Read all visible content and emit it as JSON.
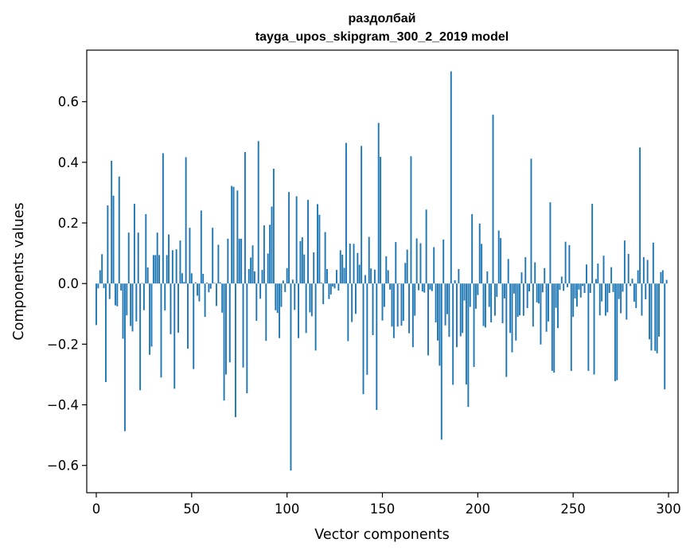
{
  "chart_data": {
    "type": "bar",
    "title": "раздолбай",
    "subtitle": "tayga_upos_skipgram_300_2_2019 model",
    "xlabel": "Vector components",
    "ylabel": "Components values",
    "xlim": [
      -5,
      305
    ],
    "ylim": [
      -0.69,
      0.77
    ],
    "xticks": [
      0,
      50,
      100,
      150,
      200,
      250,
      300
    ],
    "yticks": [
      -0.6,
      -0.4,
      -0.2,
      0.0,
      0.2,
      0.4,
      0.6
    ],
    "ytick_labels": [
      "−0.6",
      "−0.4",
      "−0.2",
      "0.0",
      "0.2",
      "0.4",
      "0.6"
    ],
    "bar_color": "#1f77b4",
    "x": "0..299 (component index)",
    "values": [
      -0.137,
      -0.016,
      0.044,
      0.097,
      -0.015,
      -0.325,
      0.258,
      -0.051,
      0.405,
      0.29,
      -0.072,
      -0.075,
      0.353,
      -0.023,
      -0.182,
      -0.487,
      -0.105,
      0.168,
      -0.14,
      -0.158,
      0.263,
      -0.125,
      0.168,
      -0.352,
      0.002,
      -0.088,
      0.229,
      0.053,
      -0.235,
      -0.208,
      0.094,
      0.094,
      0.168,
      0.094,
      -0.31,
      0.43,
      -0.089,
      0.094,
      0.162,
      -0.167,
      0.11,
      -0.347,
      0.113,
      -0.162,
      0.142,
      0.034,
      0.005,
      0.417,
      -0.215,
      0.184,
      0.034,
      -0.282,
      0.004,
      -0.04,
      -0.059,
      0.241,
      0.032,
      -0.11,
      0.003,
      -0.029,
      -0.017,
      0.184,
      0.002,
      -0.074,
      0.128,
      0.004,
      -0.096,
      -0.386,
      -0.3,
      0.148,
      -0.26,
      0.322,
      0.319,
      -0.441,
      0.307,
      0.148,
      0.148,
      -0.277,
      0.434,
      -0.362,
      0.048,
      0.086,
      0.126,
      0.04,
      -0.123,
      0.47,
      -0.05,
      0.045,
      0.192,
      -0.189,
      0.099,
      0.194,
      0.254,
      0.379,
      -0.088,
      -0.097,
      -0.18,
      -0.077,
      0.01,
      -0.028,
      0.051,
      0.302,
      -0.617,
      0.013,
      -0.087,
      0.288,
      -0.18,
      0.14,
      0.153,
      0.096,
      -0.163,
      0.276,
      -0.095,
      -0.108,
      0.103,
      -0.221,
      0.262,
      0.227,
      0.003,
      -0.068,
      0.17,
      0.048,
      -0.051,
      -0.036,
      -0.01,
      -0.016,
      0.045,
      -0.023,
      0.11,
      0.095,
      0.052,
      0.464,
      -0.19,
      0.132,
      -0.127,
      0.131,
      -0.1,
      0.101,
      0.062,
      0.454,
      -0.365,
      0.028,
      -0.301,
      0.154,
      0.05,
      -0.17,
      0.046,
      -0.417,
      0.53,
      0.418,
      -0.122,
      -0.077,
      0.09,
      0.044,
      -0.02,
      -0.142,
      -0.18,
      0.137,
      -0.142,
      0.001,
      -0.139,
      -0.123,
      0.068,
      0.112,
      -0.164,
      0.42,
      -0.21,
      -0.106,
      0.149,
      -0.022,
      0.133,
      -0.026,
      -0.03,
      0.244,
      -0.237,
      -0.02,
      -0.025,
      0.12,
      -0.128,
      -0.188,
      -0.271,
      -0.515,
      0.145,
      -0.138,
      -0.101,
      -0.176,
      0.7,
      -0.334,
      0.011,
      -0.21,
      0.048,
      -0.174,
      -0.163,
      -0.056,
      -0.333,
      -0.407,
      -0.077,
      0.229,
      -0.275,
      -0.083,
      -0.038,
      0.198,
      0.131,
      -0.14,
      -0.145,
      0.04,
      -0.077,
      -0.128,
      0.557,
      -0.106,
      -0.044,
      0.175,
      0.15,
      -0.131,
      -0.049,
      -0.308,
      0.081,
      -0.163,
      -0.227,
      -0.033,
      -0.188,
      -0.11,
      -0.105,
      0.037,
      -0.106,
      0.087,
      -0.081,
      -0.026,
      0.412,
      -0.142,
      0.07,
      -0.062,
      -0.066,
      -0.201,
      -0.029,
      0.051,
      -0.159,
      -0.125,
      0.268,
      -0.288,
      -0.294,
      -0.08,
      -0.147,
      -0.021,
      0.023,
      -0.024,
      0.138,
      -0.012,
      0.127,
      -0.288,
      -0.11,
      -0.049,
      -0.076,
      -0.02,
      -0.046,
      -0.008,
      -0.031,
      0.063,
      -0.288,
      -0.031,
      0.263,
      -0.3,
      0.015,
      0.066,
      -0.105,
      -0.059,
      0.092,
      -0.106,
      -0.095,
      -0.031,
      0.054,
      -0.028,
      -0.322,
      -0.319,
      -0.051,
      -0.098,
      -0.027,
      0.142,
      -0.119,
      0.098,
      -0.008,
      0.016,
      -0.06,
      -0.081,
      0.044,
      0.449,
      -0.106,
      0.087,
      -0.052,
      0.078,
      -0.184,
      -0.221,
      0.135,
      -0.222,
      -0.23,
      -0.175,
      0.038,
      0.044,
      -0.349,
      0.012
    ]
  }
}
